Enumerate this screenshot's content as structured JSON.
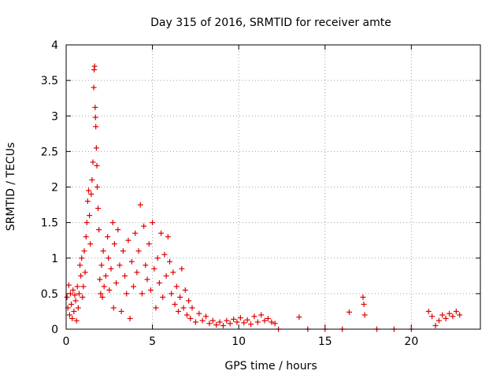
{
  "chart_data": {
    "type": "scatter",
    "title": "Day 315 of 2016, SRMTID for receiver amte",
    "xlabel": "GPS time / hours",
    "ylabel": "SRMTID / TECUs",
    "xlim": [
      0,
      24
    ],
    "ylim": [
      0,
      4
    ],
    "xticks": [
      0,
      5,
      10,
      15,
      20
    ],
    "yticks": [
      0,
      0.5,
      1,
      1.5,
      2,
      2.5,
      3,
      3.5,
      4
    ],
    "grid": true,
    "marker": "+",
    "color": "#e00000",
    "series": [
      {
        "name": "SRMTID",
        "points": [
          [
            0.05,
            0.45
          ],
          [
            0.1,
            0.3
          ],
          [
            0.15,
            0.62
          ],
          [
            0.2,
            0.2
          ],
          [
            0.25,
            0.5
          ],
          [
            0.3,
            0.35
          ],
          [
            0.35,
            0.15
          ],
          [
            0.4,
            0.55
          ],
          [
            0.45,
            0.25
          ],
          [
            0.5,
            0.48
          ],
          [
            0.55,
            0.4
          ],
          [
            0.6,
            0.12
          ],
          [
            0.65,
            0.6
          ],
          [
            0.7,
            0.3
          ],
          [
            0.75,
            0.5
          ],
          [
            0.8,
            0.9
          ],
          [
            0.85,
            0.75
          ],
          [
            0.9,
            1.0
          ],
          [
            0.95,
            0.45
          ],
          [
            1.0,
            0.6
          ],
          [
            1.05,
            1.1
          ],
          [
            1.1,
            0.8
          ],
          [
            1.15,
            1.3
          ],
          [
            1.2,
            1.5
          ],
          [
            1.25,
            1.8
          ],
          [
            1.3,
            1.95
          ],
          [
            1.35,
            1.6
          ],
          [
            1.4,
            1.2
          ],
          [
            1.45,
            1.9
          ],
          [
            1.5,
            2.1
          ],
          [
            1.55,
            2.35
          ],
          [
            1.6,
            3.4
          ],
          [
            1.62,
            3.65
          ],
          [
            1.65,
            3.7
          ],
          [
            1.68,
            3.12
          ],
          [
            1.7,
            2.98
          ],
          [
            1.72,
            2.85
          ],
          [
            1.75,
            2.55
          ],
          [
            1.78,
            2.3
          ],
          [
            1.8,
            2.0
          ],
          [
            1.85,
            1.7
          ],
          [
            1.9,
            1.4
          ],
          [
            1.95,
            0.7
          ],
          [
            2.0,
            0.5
          ],
          [
            2.05,
            0.9
          ],
          [
            2.1,
            0.45
          ],
          [
            2.15,
            1.1
          ],
          [
            2.2,
            0.6
          ],
          [
            2.3,
            0.75
          ],
          [
            2.4,
            1.3
          ],
          [
            2.45,
            1.0
          ],
          [
            2.5,
            0.55
          ],
          [
            2.6,
            0.85
          ],
          [
            2.7,
            1.5
          ],
          [
            2.75,
            0.3
          ],
          [
            2.8,
            1.2
          ],
          [
            2.9,
            0.65
          ],
          [
            3.0,
            1.4
          ],
          [
            3.1,
            0.9
          ],
          [
            3.2,
            0.25
          ],
          [
            3.3,
            1.1
          ],
          [
            3.4,
            0.75
          ],
          [
            3.5,
            0.5
          ],
          [
            3.6,
            1.25
          ],
          [
            3.7,
            0.15
          ],
          [
            3.8,
            0.95
          ],
          [
            3.9,
            0.6
          ],
          [
            4.0,
            1.35
          ],
          [
            4.1,
            0.8
          ],
          [
            4.2,
            1.1
          ],
          [
            4.3,
            1.75
          ],
          [
            4.4,
            0.5
          ],
          [
            4.5,
            1.45
          ],
          [
            4.6,
            0.9
          ],
          [
            4.7,
            0.7
          ],
          [
            4.8,
            1.2
          ],
          [
            4.9,
            0.55
          ],
          [
            5.0,
            1.5
          ],
          [
            5.1,
            0.85
          ],
          [
            5.2,
            0.3
          ],
          [
            5.3,
            1.0
          ],
          [
            5.4,
            0.65
          ],
          [
            5.5,
            1.35
          ],
          [
            5.6,
            0.45
          ],
          [
            5.7,
            1.05
          ],
          [
            5.8,
            0.75
          ],
          [
            5.9,
            1.3
          ],
          [
            6.0,
            0.95
          ],
          [
            6.1,
            0.5
          ],
          [
            6.2,
            0.8
          ],
          [
            6.3,
            0.35
          ],
          [
            6.4,
            0.6
          ],
          [
            6.5,
            0.25
          ],
          [
            6.6,
            0.45
          ],
          [
            6.7,
            0.85
          ],
          [
            6.8,
            0.3
          ],
          [
            6.9,
            0.55
          ],
          [
            7.0,
            0.2
          ],
          [
            7.1,
            0.4
          ],
          [
            7.2,
            0.15
          ],
          [
            7.3,
            0.3
          ],
          [
            7.5,
            0.1
          ],
          [
            7.7,
            0.22
          ],
          [
            7.9,
            0.12
          ],
          [
            8.1,
            0.18
          ],
          [
            8.3,
            0.08
          ],
          [
            8.5,
            0.12
          ],
          [
            8.7,
            0.06
          ],
          [
            8.9,
            0.1
          ],
          [
            9.1,
            0.05
          ],
          [
            9.3,
            0.12
          ],
          [
            9.5,
            0.08
          ],
          [
            9.7,
            0.14
          ],
          [
            9.9,
            0.1
          ],
          [
            10.1,
            0.16
          ],
          [
            10.3,
            0.09
          ],
          [
            10.5,
            0.13
          ],
          [
            10.7,
            0.07
          ],
          [
            10.9,
            0.18
          ],
          [
            11.1,
            0.1
          ],
          [
            11.3,
            0.2
          ],
          [
            11.5,
            0.12
          ],
          [
            11.7,
            0.15
          ],
          [
            11.9,
            0.1
          ],
          [
            12.1,
            0.08
          ],
          [
            12.3,
            0.0
          ],
          [
            13.5,
            0.17
          ],
          [
            14.0,
            0.0
          ],
          [
            15.0,
            0.0
          ],
          [
            16.0,
            0.0
          ],
          [
            16.4,
            0.24
          ],
          [
            17.2,
            0.45
          ],
          [
            17.25,
            0.35
          ],
          [
            17.3,
            0.2
          ],
          [
            18.0,
            0.0
          ],
          [
            19.0,
            0.0
          ],
          [
            20.0,
            0.0
          ],
          [
            21.0,
            0.25
          ],
          [
            21.2,
            0.18
          ],
          [
            21.4,
            0.05
          ],
          [
            21.6,
            0.12
          ],
          [
            21.8,
            0.2
          ],
          [
            22.0,
            0.15
          ],
          [
            22.2,
            0.22
          ],
          [
            22.4,
            0.18
          ],
          [
            22.6,
            0.25
          ],
          [
            22.8,
            0.2
          ]
        ]
      }
    ]
  }
}
